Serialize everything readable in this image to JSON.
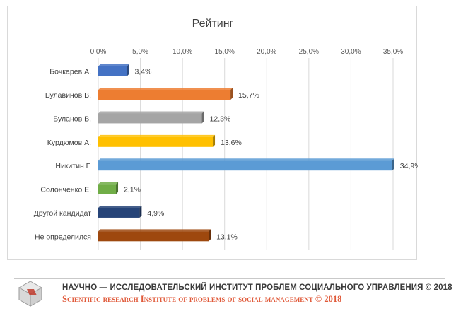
{
  "chart_data": {
    "type": "bar",
    "orientation": "horizontal",
    "title": "Рейтинг",
    "categories": [
      "Бочкарев А.",
      "Булавинов В.",
      "Буланов В.",
      "Курдюмов А.",
      "Никитин Г.",
      "Солонченко Е.",
      "Другой кандидат",
      "Не определился"
    ],
    "values": [
      3.4,
      15.7,
      12.3,
      13.6,
      34.9,
      2.1,
      4.9,
      13.1
    ],
    "value_labels": [
      "3,4%",
      "15,7%",
      "12,3%",
      "13,6%",
      "34,9%",
      "2,1%",
      "4,9%",
      "13,1%"
    ],
    "colors": [
      "#4472c4",
      "#ed7d31",
      "#a5a5a5",
      "#ffc000",
      "#5b9bd5",
      "#70ad47",
      "#264478",
      "#9e480e"
    ],
    "xlim": [
      0,
      35
    ],
    "x_ticks": [
      0,
      5,
      10,
      15,
      20,
      25,
      30,
      35
    ],
    "x_tick_labels": [
      "0,0%",
      "5,0%",
      "10,0%",
      "15,0%",
      "20,0%",
      "25,0%",
      "30,0%",
      "35,0%"
    ],
    "axis_position": "top",
    "grid": true,
    "legend": "none"
  },
  "footer": {
    "ru_text": "НАУЧНО — ИССЛЕДОВАТЕЛЬСКИЙ ИНСТИТУТ ПРОБЛЕМ СОЦИАЛЬНОГО УПРАВЛЕНИЯ © 2018",
    "en_text": "Scientific research Institute of problems of social management © 2018"
  }
}
